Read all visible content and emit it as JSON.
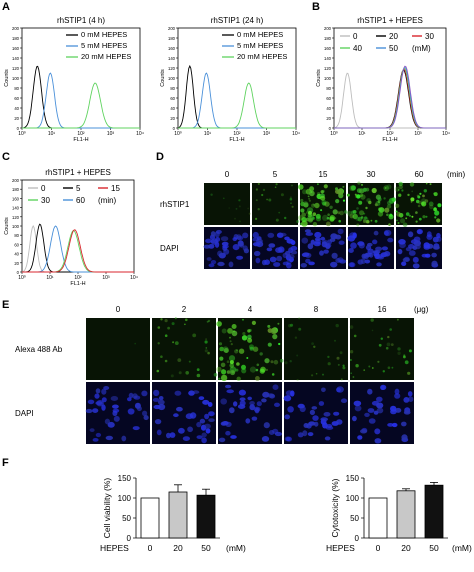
{
  "panels": {
    "A": {
      "label": "A",
      "plots": [
        {
          "title": "rhSTIP1 (4 h)",
          "legend": [
            "0 mM HEPES",
            "5 mM HEPES",
            "20 mM HEPES"
          ],
          "ylabel": "Counts",
          "xlabel": "FL1-H"
        },
        {
          "title": "rhSTIP1 (24 h)",
          "legend": [
            "0 mM HEPES",
            "5 mM HEPES",
            "20 mM HEPES"
          ],
          "ylabel": "Counts",
          "xlabel": "FL1-H"
        }
      ]
    },
    "B": {
      "label": "B",
      "title": "rhSTIP1 + HEPES",
      "legend_row1": [
        "0",
        "20",
        "30"
      ],
      "legend_row2": [
        "40",
        "50",
        "(mM)"
      ],
      "ylabel": "Counts",
      "xlabel": "FL1-H"
    },
    "C": {
      "label": "C",
      "title": "rhSTIP1 + HEPES",
      "legend_row1": [
        "0",
        "5",
        "15"
      ],
      "legend_row2": [
        "30",
        "60",
        "(min)"
      ],
      "ylabel": "Counts",
      "xlabel": "FL1-H"
    },
    "D": {
      "label": "D",
      "columns": [
        "0",
        "5",
        "15",
        "30",
        "60"
      ],
      "unit": "(min)",
      "rows": [
        "rhSTIP1",
        "DAPI"
      ]
    },
    "E": {
      "label": "E",
      "columns": [
        "0",
        "2",
        "4",
        "8",
        "16"
      ],
      "unit": "(μg)",
      "rows": [
        "Alexa 488 Ab",
        "DAPI"
      ]
    },
    "F": {
      "label": "F",
      "xaxis_label": "HEPES",
      "xunit": "(mM)",
      "charts": [
        {
          "ylabel": "Cell viability (%)"
        },
        {
          "ylabel": "Cytotoxicity (%)"
        }
      ]
    }
  },
  "hist_axes": {
    "x_ticks": [
      "10⁰",
      "10¹",
      "10²",
      "10³",
      "10⁴"
    ],
    "y_ticks": [
      "0",
      "20",
      "40",
      "60",
      "80",
      "100",
      "120",
      "140",
      "160",
      "180",
      "200"
    ]
  },
  "chart_data": [
    {
      "type": "bar",
      "categories": [
        "0",
        "20",
        "50"
      ],
      "values": [
        100,
        115,
        107
      ],
      "errors": [
        0,
        18,
        15
      ],
      "ylabel": "Cell viability (%)",
      "ylim": [
        0,
        150
      ],
      "yticks": [
        "0",
        "50",
        "100",
        "150"
      ],
      "colors": [
        "#ffffff",
        "#c8c8c8",
        "#111111"
      ]
    },
    {
      "type": "bar",
      "categories": [
        "0",
        "20",
        "50"
      ],
      "values": [
        100,
        118,
        132
      ],
      "errors": [
        0,
        5,
        7
      ],
      "ylabel": "Cytotoxicity (%)",
      "ylim": [
        0,
        150
      ],
      "yticks": [
        "0",
        "50",
        "100",
        "150"
      ],
      "colors": [
        "#ffffff",
        "#c8c8c8",
        "#111111"
      ]
    }
  ],
  "colors": {
    "black": "#000000",
    "blue": "#4a90d9",
    "green": "#5fd35f",
    "gray": "#bdbdbd",
    "red": "#d9262d",
    "purple": "#8a55c0",
    "teal": "#37a8a8"
  }
}
